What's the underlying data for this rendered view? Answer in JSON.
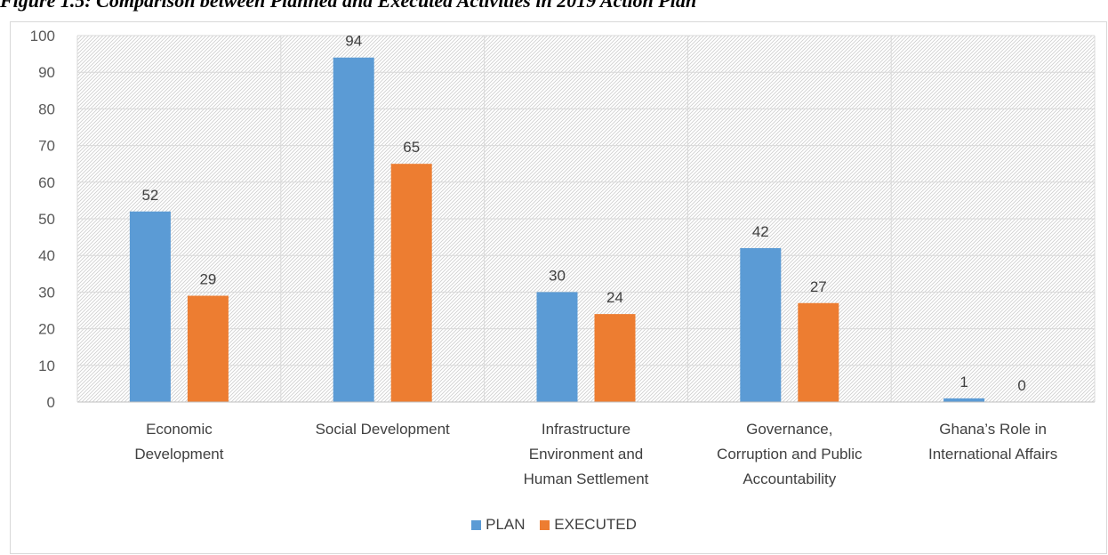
{
  "page_title": "Figure 1.5: Comparison between Planned and Executed Activities in 2019 Action Plan",
  "chart_data": {
    "type": "bar",
    "categories": [
      [
        "Economic",
        "Development"
      ],
      [
        "Social Development"
      ],
      [
        "Infrastructure",
        "Environment and",
        "Human Settlement"
      ],
      [
        "Governance,",
        "Corruption and Public",
        "Accountability"
      ],
      [
        "Ghana’s Role in",
        "International Affairs"
      ]
    ],
    "series": [
      {
        "name": "PLAN",
        "color": "#5b9bd5",
        "values": [
          52,
          94,
          30,
          42,
          1
        ]
      },
      {
        "name": "EXECUTED",
        "color": "#ed7d31",
        "values": [
          29,
          65,
          24,
          27,
          0
        ]
      }
    ],
    "yticks": [
      "0",
      "10",
      "20",
      "30",
      "40",
      "50",
      "60",
      "70",
      "80",
      "90",
      "100"
    ],
    "ylim": [
      0,
      100
    ],
    "grid": true,
    "legend_position": "bottom"
  }
}
